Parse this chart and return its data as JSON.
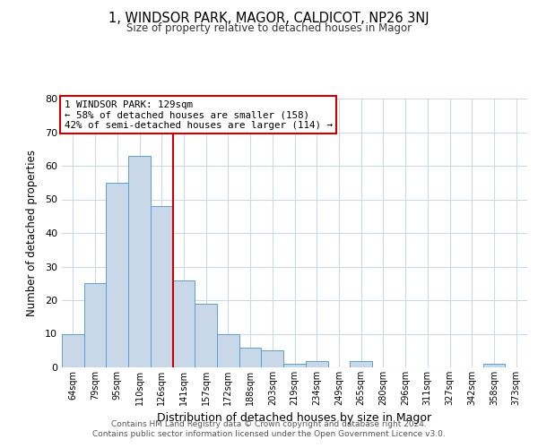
{
  "title_main": "1, WINDSOR PARK, MAGOR, CALDICOT, NP26 3NJ",
  "title_sub": "Size of property relative to detached houses in Magor",
  "xlabel": "Distribution of detached houses by size in Magor",
  "ylabel": "Number of detached properties",
  "categories": [
    "64sqm",
    "79sqm",
    "95sqm",
    "110sqm",
    "126sqm",
    "141sqm",
    "157sqm",
    "172sqm",
    "188sqm",
    "203sqm",
    "219sqm",
    "234sqm",
    "249sqm",
    "265sqm",
    "280sqm",
    "296sqm",
    "311sqm",
    "327sqm",
    "342sqm",
    "358sqm",
    "373sqm"
  ],
  "values": [
    10,
    25,
    55,
    63,
    48,
    26,
    19,
    10,
    6,
    5,
    1,
    2,
    0,
    2,
    0,
    0,
    0,
    0,
    0,
    1,
    0
  ],
  "bar_color": "#c8d8e8",
  "bar_edge_color": "#5a9fd4",
  "vline_x_idx": 4,
  "vline_color": "#cc0000",
  "annotation_line1": "1 WINDSOR PARK: 129sqm",
  "annotation_line2": "← 58% of detached houses are smaller (158)",
  "annotation_line3": "42% of semi-detached houses are larger (114) →",
  "annotation_box_color": "#cc0000",
  "ylim": [
    0,
    80
  ],
  "yticks": [
    0,
    10,
    20,
    30,
    40,
    50,
    60,
    70,
    80
  ],
  "footer1": "Contains HM Land Registry data © Crown copyright and database right 2024.",
  "footer2": "Contains public sector information licensed under the Open Government Licence v3.0.",
  "bg_color": "#ffffff",
  "grid_color": "#d0d8e8"
}
